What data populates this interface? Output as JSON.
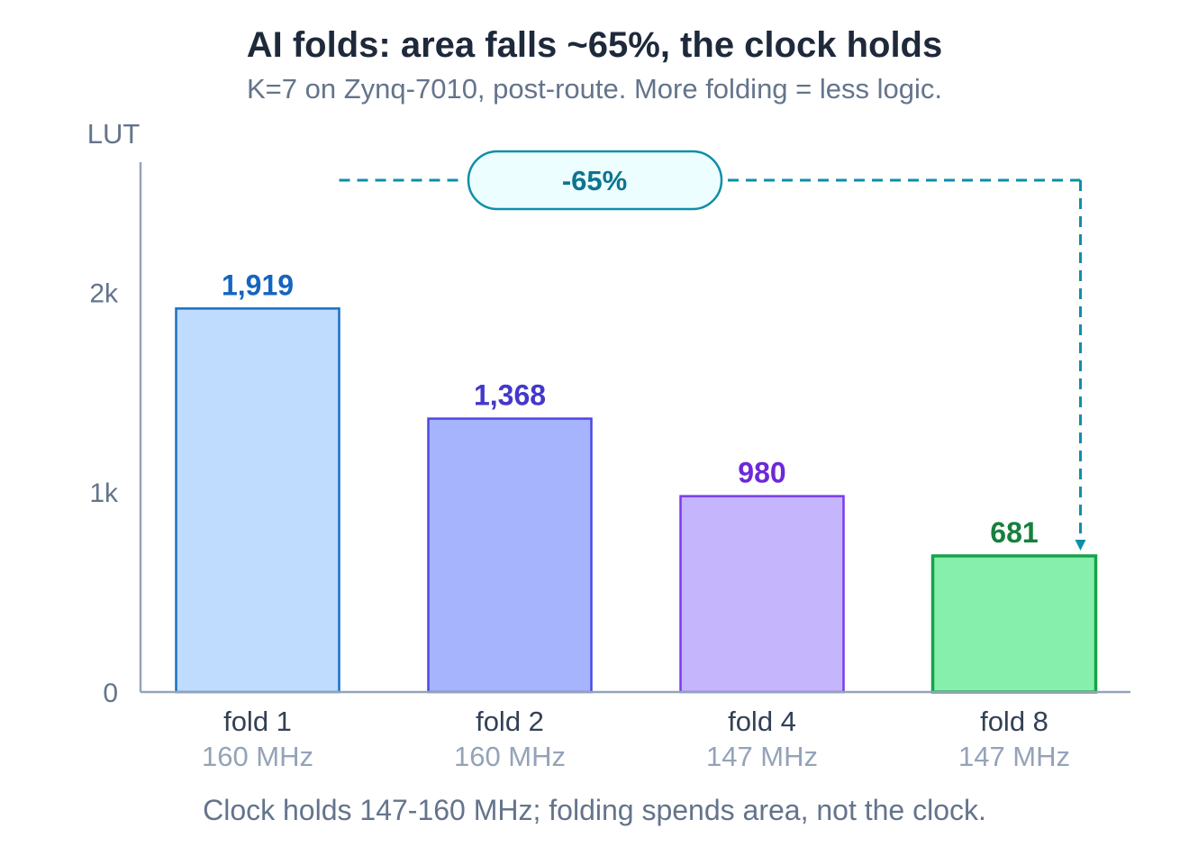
{
  "chart_data": {
    "type": "bar",
    "title": "AI folds: area falls ~65%, the clock holds",
    "subtitle": "K=7 on Zynq-7010, post-route. More folding = less logic.",
    "ylabel": "LUT",
    "ylim": [
      0,
      2500
    ],
    "yticks": [
      {
        "value": 0,
        "label": "0"
      },
      {
        "value": 1000,
        "label": "1k"
      },
      {
        "value": 2000,
        "label": "2k"
      }
    ],
    "categories": [
      "fold 1",
      "fold 2",
      "fold 4",
      "fold 8"
    ],
    "sublabels": [
      "160 MHz",
      "160 MHz",
      "147 MHz",
      "147 MHz"
    ],
    "values": [
      1919,
      1368,
      980,
      681
    ],
    "value_labels": [
      "1,919",
      "1,368",
      "980",
      "681"
    ],
    "grid": false,
    "colors": {
      "fills": [
        "#bfdbfe",
        "#a5b4fc",
        "#c4b5fd",
        "#86efac"
      ],
      "strokes": [
        "#1d6fc2",
        "#4f46e5",
        "#7c3aed",
        "#16a34a"
      ],
      "labels": [
        "#1565c0",
        "#4338ca",
        "#6d28d9",
        "#15803d"
      ],
      "annotation": "#0e8fa8",
      "annotation_fill": "#ecfeff",
      "axis": "#94a3b8"
    },
    "annotation": {
      "label": "-65%",
      "from": "fold 1",
      "to": "fold 8"
    },
    "footnote": "Clock holds 147-160 MHz; folding spends area, not the clock."
  }
}
